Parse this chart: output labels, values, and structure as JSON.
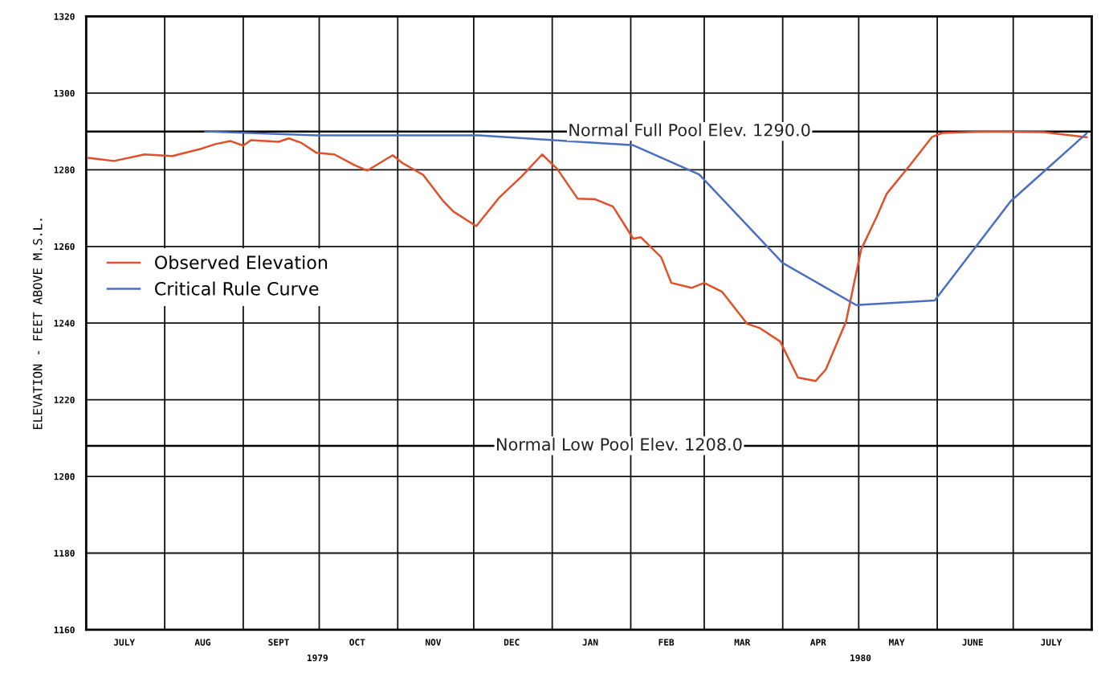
{
  "chart_data": {
    "type": "line",
    "ylabel": "ELEVATION - FEET ABOVE M.S.L.",
    "series": [
      {
        "name": "Observed Elevation",
        "color": "#e0502a",
        "x": [
          "1979-07-02",
          "1979-07-12",
          "1979-07-24",
          "1979-08-04",
          "1979-08-15",
          "1979-08-21",
          "1979-08-27",
          "1979-09-01",
          "1979-09-04",
          "1979-09-15",
          "1979-09-19",
          "1979-09-24",
          "1979-09-30",
          "1979-10-07",
          "1979-10-15",
          "1979-10-20",
          "1979-10-30",
          "1979-11-03",
          "1979-11-11",
          "1979-11-19",
          "1979-11-23",
          "1979-12-02",
          "1979-12-11",
          "1979-12-20",
          "1979-12-28",
          "1980-01-03",
          "1980-01-11",
          "1980-01-18",
          "1980-01-25",
          "1980-02-02",
          "1980-02-05",
          "1980-02-13",
          "1980-02-17",
          "1980-02-25",
          "1980-03-01",
          "1980-03-08",
          "1980-03-18",
          "1980-03-23",
          "1980-03-31",
          "1980-04-07",
          "1980-04-14",
          "1980-04-18",
          "1980-04-26",
          "1980-05-02",
          "1980-05-08",
          "1980-05-12",
          "1980-05-21",
          "1980-05-30",
          "1980-06-03",
          "1980-06-21",
          "1980-07-13",
          "1980-07-30"
        ],
        "values": [
          1283.1,
          1282.3,
          1284.0,
          1283.6,
          1285.4,
          1286.7,
          1287.5,
          1286.3,
          1287.7,
          1287.3,
          1288.2,
          1287.0,
          1284.4,
          1284.0,
          1281.2,
          1279.8,
          1283.8,
          1281.7,
          1278.7,
          1271.8,
          1269.1,
          1265.3,
          1272.7,
          1278.3,
          1284.0,
          1280.2,
          1272.5,
          1272.3,
          1270.4,
          1262.0,
          1262.4,
          1257.2,
          1250.5,
          1249.2,
          1250.5,
          1248.2,
          1239.8,
          1238.7,
          1235.2,
          1225.8,
          1224.9,
          1227.9,
          1240.4,
          1259.3,
          1267.6,
          1273.7,
          1281.0,
          1288.6,
          1289.6,
          1290.0,
          1289.8,
          1288.5
        ]
      },
      {
        "name": "Critical Rule Curve",
        "color": "#4a6fc0",
        "x": [
          "1979-08-17",
          "1979-09-30",
          "1979-12-03",
          "1980-02-02",
          "1980-02-28",
          "1980-04-01",
          "1980-04-30",
          "1980-05-31",
          "1980-06-30",
          "1980-07-30"
        ],
        "values": [
          1290.0,
          1289.0,
          1289.0,
          1286.4,
          1278.8,
          1255.7,
          1244.7,
          1245.9,
          1271.8,
          1289.5
        ]
      }
    ],
    "xlim": [
      "1979-07-01",
      "1980-08-01"
    ],
    "xticks": [
      {
        "value": "1979-08-01",
        "label": null
      },
      {
        "value": "1979-09-01",
        "label": null
      },
      {
        "value": "1979-10-01",
        "label": null
      },
      {
        "value": "1979-11-01",
        "label": null
      },
      {
        "value": "1979-12-01",
        "label": null
      },
      {
        "value": "1980-01-01",
        "label": null
      },
      {
        "value": "1980-02-01",
        "label": null
      },
      {
        "value": "1980-03-01",
        "label": null
      },
      {
        "value": "1980-04-01",
        "label": null
      },
      {
        "value": "1980-05-01",
        "label": null
      },
      {
        "value": "1980-06-01",
        "label": null
      },
      {
        "value": "1980-07-01",
        "label": null
      },
      {
        "value": "1979-07-16",
        "label": "JULY"
      },
      {
        "value": "1979-08-16",
        "label": "AUG"
      },
      {
        "value": "1979-09-15",
        "label": "SEPT"
      },
      {
        "value": "1979-10-16",
        "label": "OCT"
      },
      {
        "value": "1979-11-15",
        "label": "NOV"
      },
      {
        "value": "1979-12-16",
        "label": "DEC"
      },
      {
        "value": "1980-01-16",
        "label": "JAN"
      },
      {
        "value": "1980-02-15",
        "label": "FEB"
      },
      {
        "value": "1980-03-16",
        "label": "MAR"
      },
      {
        "value": "1980-04-15",
        "label": "APR"
      },
      {
        "value": "1980-05-16",
        "label": "MAY"
      },
      {
        "value": "1980-06-15",
        "label": "JUNE"
      },
      {
        "value": "1980-07-16",
        "label": "JULY"
      }
    ],
    "ylim": [
      1160,
      1320
    ],
    "yticks": [
      1160,
      1180,
      1200,
      1220,
      1240,
      1260,
      1280,
      1300,
      1320
    ],
    "ref_lines": [
      {
        "axis": "y",
        "value": 1290,
        "label": "Normal Full Pool Elev. 1290.0",
        "color": "#000000"
      },
      {
        "axis": "y",
        "value": 1208,
        "label": "Normal Low Pool Elev. 1208.0",
        "color": "#000000"
      }
    ],
    "annotations": [
      "1979",
      "1980"
    ],
    "grid": true,
    "legend": "center left",
    "marker": "none",
    "line_style": "solid"
  }
}
